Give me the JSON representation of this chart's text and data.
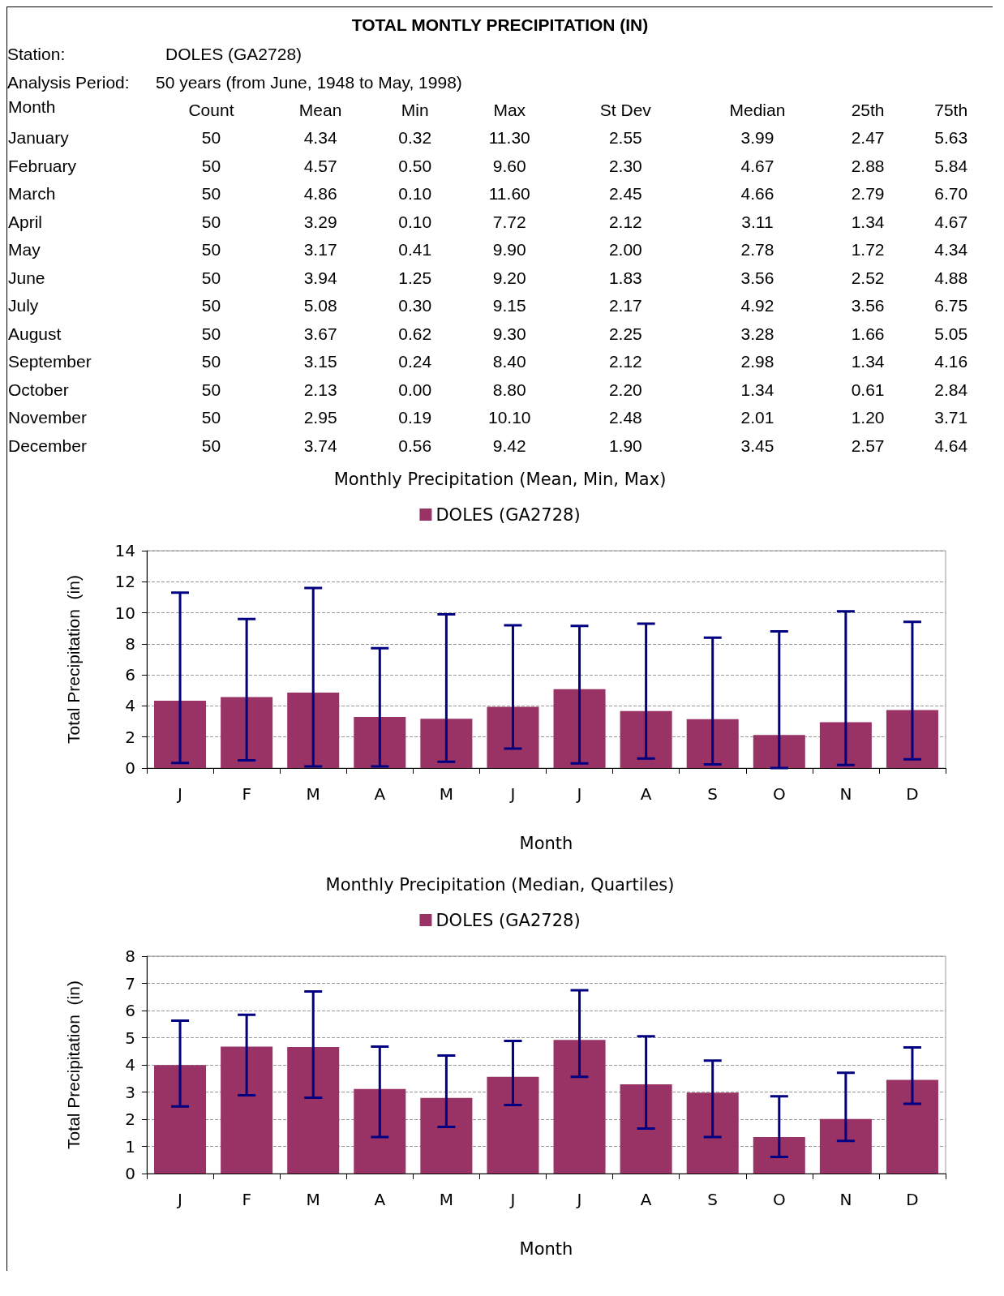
{
  "chart_data": [
    {
      "type": "other",
      "title": "TOTAL MONTLY PRECIPITATION (IN)",
      "annotations": [
        "Station:",
        "DOLES (GA2728)",
        "Analysis Period:",
        "50 years (from June, 1948 to May, 1998)"
      ],
      "xlabel": "Month",
      "categories": [
        "January",
        "February",
        "March",
        "April",
        "May",
        "June",
        "July",
        "August",
        "September",
        "October",
        "November",
        "December"
      ],
      "series": [
        {
          "name": "Count",
          "values": [
            50,
            50,
            50,
            50,
            50,
            50,
            50,
            50,
            50,
            50,
            50,
            50
          ],
          "value_labels": [
            "50",
            "50",
            "50",
            "50",
            "50",
            "50",
            "50",
            "50",
            "50",
            "50",
            "50",
            "50"
          ]
        },
        {
          "name": "Mean",
          "values": [
            4.34,
            4.57,
            4.86,
            3.29,
            3.17,
            3.94,
            5.08,
            3.67,
            3.15,
            2.13,
            2.95,
            3.74
          ],
          "value_labels": [
            "4.34",
            "4.57",
            "4.86",
            "3.29",
            "3.17",
            "3.94",
            "5.08",
            "3.67",
            "3.15",
            "2.13",
            "2.95",
            "3.74"
          ]
        },
        {
          "name": "Min",
          "values": [
            0.32,
            0.5,
            0.1,
            0.1,
            0.41,
            1.25,
            0.3,
            0.62,
            0.24,
            0.0,
            0.19,
            0.56
          ],
          "value_labels": [
            "0.32",
            "0.50",
            "0.10",
            "0.10",
            "0.41",
            "1.25",
            "0.30",
            "0.62",
            "0.24",
            "0.00",
            "0.19",
            "0.56"
          ]
        },
        {
          "name": "Max",
          "values": [
            11.3,
            9.6,
            11.6,
            7.72,
            9.9,
            9.2,
            9.15,
            9.3,
            8.4,
            8.8,
            10.1,
            9.42
          ],
          "value_labels": [
            "11.30",
            "9.60",
            "11.60",
            "7.72",
            "9.90",
            "9.20",
            "9.15",
            "9.30",
            "8.40",
            "8.80",
            "10.10",
            "9.42"
          ]
        },
        {
          "name": "St Dev",
          "values": [
            2.55,
            2.3,
            2.45,
            2.12,
            2.0,
            1.83,
            2.17,
            2.25,
            2.12,
            2.2,
            2.48,
            1.9
          ],
          "value_labels": [
            "2.55",
            "2.30",
            "2.45",
            "2.12",
            "2.00",
            "1.83",
            "2.17",
            "2.25",
            "2.12",
            "2.20",
            "2.48",
            "1.90"
          ]
        },
        {
          "name": "Median",
          "values": [
            3.99,
            4.67,
            4.66,
            3.11,
            2.78,
            3.56,
            4.92,
            3.28,
            2.98,
            1.34,
            2.01,
            3.45
          ],
          "value_labels": [
            "3.99",
            "4.67",
            "4.66",
            "3.11",
            "2.78",
            "3.56",
            "4.92",
            "3.28",
            "2.98",
            "1.34",
            "2.01",
            "3.45"
          ]
        },
        {
          "name": "25th",
          "values": [
            2.47,
            2.88,
            2.79,
            1.34,
            1.72,
            2.52,
            3.56,
            1.66,
            1.34,
            0.61,
            1.2,
            2.57
          ],
          "value_labels": [
            "2.47",
            "2.88",
            "2.79",
            "1.34",
            "1.72",
            "2.52",
            "3.56",
            "1.66",
            "1.34",
            "0.61",
            "1.20",
            "2.57"
          ]
        },
        {
          "name": "75th",
          "values": [
            5.63,
            5.84,
            6.7,
            4.67,
            4.34,
            4.88,
            6.75,
            5.05,
            4.16,
            2.84,
            3.71,
            4.64
          ],
          "value_labels": [
            "5.63",
            "5.84",
            "6.70",
            "4.67",
            "4.34",
            "4.88",
            "6.75",
            "5.05",
            "4.16",
            "2.84",
            "3.71",
            "4.64"
          ]
        }
      ]
    },
    {
      "type": "bar",
      "title": "Monthly Precipitation (Mean, Min, Max)",
      "xlabel": "Month",
      "ylabel": "Total Precipitation  (in)",
      "categories": [
        "J",
        "F",
        "M",
        "A",
        "M",
        "J",
        "J",
        "A",
        "S",
        "O",
        "N",
        "D"
      ],
      "series": [
        {
          "name": "DOLES (GA2728)",
          "color": "#993366",
          "values": [
            4.34,
            4.57,
            4.86,
            3.29,
            3.17,
            3.94,
            5.08,
            3.67,
            3.15,
            2.13,
            2.95,
            3.74
          ],
          "errors": [
            [
              0.32,
              11.3
            ],
            [
              0.5,
              9.6
            ],
            [
              0.1,
              11.6
            ],
            [
              0.1,
              7.72
            ],
            [
              0.41,
              9.9
            ],
            [
              1.25,
              9.2
            ],
            [
              0.3,
              9.15
            ],
            [
              0.62,
              9.3
            ],
            [
              0.24,
              8.4
            ],
            [
              0.0,
              8.8
            ],
            [
              0.19,
              10.1
            ],
            [
              0.56,
              9.42
            ]
          ]
        }
      ],
      "ylim": [
        0,
        14
      ],
      "yticks": [
        0,
        2,
        4,
        6,
        8,
        10,
        12,
        14
      ],
      "grid": "y",
      "legend": "top"
    },
    {
      "type": "bar",
      "title": "Monthly Precipitation (Median, Quartiles)",
      "xlabel": "Month",
      "ylabel": "Total Precipitation  (in)",
      "categories": [
        "J",
        "F",
        "M",
        "A",
        "M",
        "J",
        "J",
        "A",
        "S",
        "O",
        "N",
        "D"
      ],
      "series": [
        {
          "name": "DOLES (GA2728)",
          "color": "#993366",
          "values": [
            3.99,
            4.67,
            4.66,
            3.11,
            2.78,
            3.56,
            4.92,
            3.28,
            2.98,
            1.34,
            2.01,
            3.45
          ],
          "errors": [
            [
              2.47,
              5.63
            ],
            [
              2.88,
              5.84
            ],
            [
              2.79,
              6.7
            ],
            [
              1.34,
              4.67
            ],
            [
              1.72,
              4.34
            ],
            [
              2.52,
              4.88
            ],
            [
              3.56,
              6.75
            ],
            [
              1.66,
              5.05
            ],
            [
              1.34,
              4.16
            ],
            [
              0.61,
              2.84
            ],
            [
              1.2,
              3.71
            ],
            [
              2.57,
              4.64
            ]
          ]
        }
      ],
      "ylim": [
        0,
        8
      ],
      "yticks": [
        0,
        1,
        2,
        3,
        4,
        5,
        6,
        7,
        8
      ],
      "grid": "y",
      "legend": "top"
    }
  ]
}
